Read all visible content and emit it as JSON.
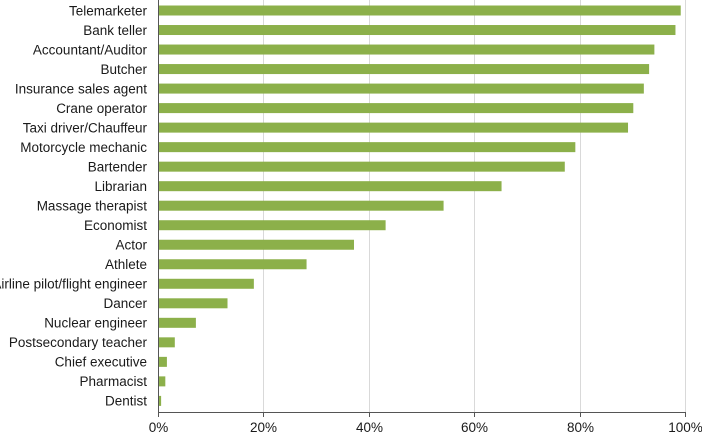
{
  "chart_data": {
    "type": "bar",
    "orientation": "horizontal",
    "categories": [
      "Telemarketer",
      "Bank teller",
      "Accountant/Auditor",
      "Butcher",
      "Insurance sales agent",
      "Crane operator",
      "Taxi driver/Chauffeur",
      "Motorcycle mechanic",
      "Bartender",
      "Librarian",
      "Massage therapist",
      "Economist",
      "Actor",
      "Athlete",
      "Airline pilot/flight engineer",
      "Dancer",
      "Nuclear engineer",
      "Postsecondary teacher",
      "Chief executive",
      "Pharmacist",
      "Dentist"
    ],
    "values": [
      99,
      98,
      94,
      93,
      92,
      90,
      89,
      79,
      77,
      65,
      54,
      43,
      37,
      28,
      18,
      13,
      7,
      3,
      1.5,
      1.2,
      0.4
    ],
    "xticks": [
      "0%",
      "20%",
      "40%",
      "60%",
      "80%",
      "100%"
    ],
    "xlim": [
      0,
      100
    ],
    "grid": true,
    "bar_color": "#8cb04a"
  }
}
